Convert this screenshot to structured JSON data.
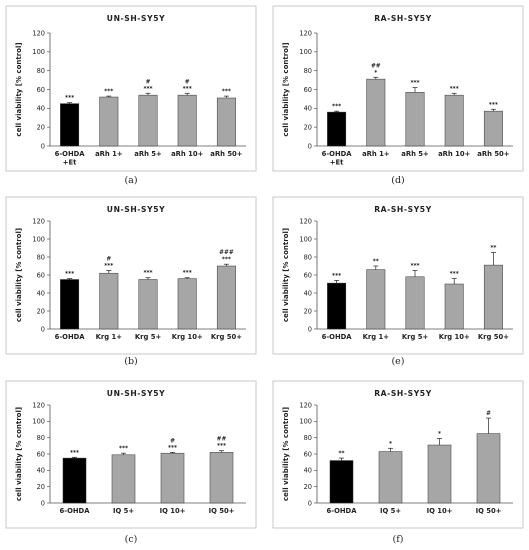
{
  "chart_data": [
    {
      "type": "bar",
      "title": "UN-SH-SY5Y",
      "ylabel": "cell viability [% control]",
      "ylim": [
        0,
        120
      ],
      "yticks": [
        0,
        20,
        40,
        60,
        80,
        100,
        120
      ],
      "categories": [
        [
          "6-OHDA",
          "+Et"
        ],
        [
          "aRh 1+"
        ],
        [
          "aRh 5+"
        ],
        [
          "aRh 10+"
        ],
        [
          "aRh 50+"
        ]
      ],
      "values": [
        45,
        52,
        54,
        54,
        51
      ],
      "errors": [
        1,
        1,
        2,
        2,
        2
      ],
      "significance": [
        [
          "***"
        ],
        [
          "***"
        ],
        [
          "#",
          "***"
        ],
        [
          "#",
          "***"
        ],
        [
          "***"
        ]
      ],
      "bar_colors": [
        "#000000",
        "#a6a6a6",
        "#a6a6a6",
        "#a6a6a6",
        "#a6a6a6"
      ],
      "panel_label": "(a)"
    },
    {
      "type": "bar",
      "title": "RA-SH-SY5Y",
      "ylabel": "cell viability [% control]",
      "ylim": [
        0,
        120
      ],
      "yticks": [
        0,
        20,
        40,
        60,
        80,
        100,
        120
      ],
      "categories": [
        [
          "6-OHDA",
          "+Et"
        ],
        [
          "aRh 1+"
        ],
        [
          "aRh 5+"
        ],
        [
          "aRh 10+"
        ],
        [
          "aRh 50+"
        ]
      ],
      "values": [
        36,
        71,
        57,
        54,
        37
      ],
      "errors": [
        1,
        2,
        5,
        2,
        2
      ],
      "significance": [
        [
          "***"
        ],
        [
          "##",
          "*"
        ],
        [
          "***"
        ],
        [
          "***"
        ],
        [
          "***"
        ]
      ],
      "bar_colors": [
        "#000000",
        "#a6a6a6",
        "#a6a6a6",
        "#a6a6a6",
        "#a6a6a6"
      ],
      "panel_label": "(d)"
    },
    {
      "type": "bar",
      "title": "UN-SH-SY5Y",
      "ylabel": "cell viability [% control]",
      "ylim": [
        0,
        120
      ],
      "yticks": [
        0,
        20,
        40,
        60,
        80,
        100,
        120
      ],
      "categories": [
        [
          "6-OHDA"
        ],
        [
          "Krg 1+"
        ],
        [
          "Krg 5+"
        ],
        [
          "Krg 10+"
        ],
        [
          "Krg 50+"
        ]
      ],
      "values": [
        55,
        62,
        55,
        56,
        70
      ],
      "errors": [
        1,
        3,
        2,
        1,
        2
      ],
      "significance": [
        [
          "***"
        ],
        [
          "#",
          "***"
        ],
        [
          "***"
        ],
        [
          "***"
        ],
        [
          "###",
          "***"
        ]
      ],
      "bar_colors": [
        "#000000",
        "#a6a6a6",
        "#a6a6a6",
        "#a6a6a6",
        "#a6a6a6"
      ],
      "panel_label": "(b)"
    },
    {
      "type": "bar",
      "title": "RA-SH-SY5Y",
      "ylabel": "cell viability [% control]",
      "ylim": [
        0,
        120
      ],
      "yticks": [
        0,
        20,
        40,
        60,
        80,
        100,
        120
      ],
      "categories": [
        [
          "6-OHDA"
        ],
        [
          "Krg 1+"
        ],
        [
          "Krg 5+"
        ],
        [
          "Krg 10+"
        ],
        [
          "Krg 50+"
        ]
      ],
      "values": [
        51,
        66,
        58,
        50,
        71
      ],
      "errors": [
        3,
        4,
        7,
        6,
        14
      ],
      "significance": [
        [
          "***"
        ],
        [
          "**"
        ],
        [
          "***"
        ],
        [
          "***"
        ],
        [
          "**"
        ]
      ],
      "bar_colors": [
        "#000000",
        "#a6a6a6",
        "#a6a6a6",
        "#a6a6a6",
        "#a6a6a6"
      ],
      "panel_label": "(e)"
    },
    {
      "type": "bar",
      "title": "UN-SH-SY5Y",
      "ylabel": "cell viability [% control]",
      "ylim": [
        0,
        120
      ],
      "yticks": [
        0,
        20,
        40,
        60,
        80,
        100,
        120
      ],
      "categories": [
        [
          "6-OHDA"
        ],
        [
          "IQ 5+"
        ],
        [
          "IQ 10+"
        ],
        [
          "IQ 50+"
        ]
      ],
      "values": [
        55,
        59,
        61,
        62
      ],
      "errors": [
        1,
        2,
        1,
        2
      ],
      "significance": [
        [
          "***"
        ],
        [
          "***"
        ],
        [
          "#",
          "***"
        ],
        [
          "##",
          "***"
        ]
      ],
      "bar_colors": [
        "#000000",
        "#a6a6a6",
        "#a6a6a6",
        "#a6a6a6"
      ],
      "panel_label": "(c)"
    },
    {
      "type": "bar",
      "title": "RA-SH-SY5Y",
      "ylabel": "cell viability [% control]",
      "ylim": [
        0,
        120
      ],
      "yticks": [
        0,
        20,
        40,
        60,
        80,
        100,
        120
      ],
      "categories": [
        [
          "6-OHDA"
        ],
        [
          "IQ 5+"
        ],
        [
          "IQ 10+"
        ],
        [
          "IQ 50+"
        ]
      ],
      "values": [
        52,
        63,
        71,
        85
      ],
      "errors": [
        3,
        4,
        8,
        19
      ],
      "significance": [
        [
          "**"
        ],
        [
          "*"
        ],
        [
          "*"
        ],
        [
          "#"
        ]
      ],
      "bar_colors": [
        "#000000",
        "#a6a6a6",
        "#a6a6a6",
        "#a6a6a6"
      ],
      "panel_label": "(f)"
    }
  ]
}
